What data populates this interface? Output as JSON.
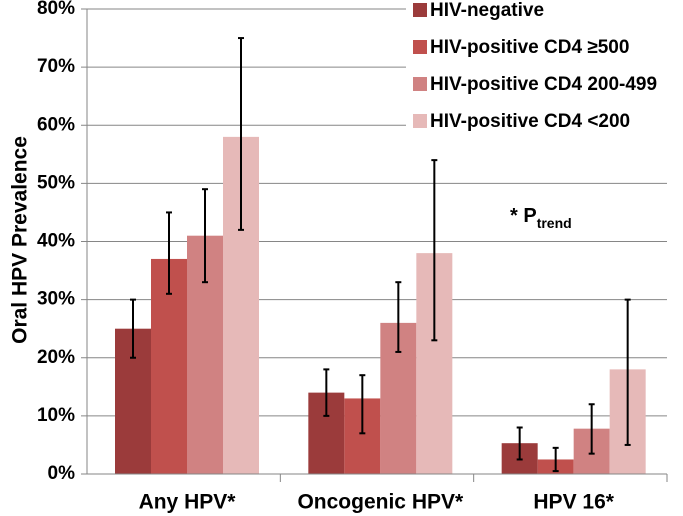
{
  "chart_data": {
    "type": "bar",
    "ylabel": "Oral HPV Prevalence",
    "xlabel": "",
    "ylim": [
      0,
      80
    ],
    "yticks": [
      "0%",
      "10%",
      "20%",
      "30%",
      "40%",
      "50%",
      "60%",
      "70%",
      "80%"
    ],
    "grid": true,
    "legend_position": "top-right",
    "categories": [
      "Any HPV*",
      "Oncogenic HPV*",
      "HPV 16*"
    ],
    "series": [
      {
        "name": "HIV-negative",
        "color": "#9b3b3b",
        "values": [
          25,
          14,
          5.3
        ],
        "err_low": [
          20,
          10,
          2.5
        ],
        "err_high": [
          30,
          18,
          8
        ]
      },
      {
        "name": "HIV-positive CD4 ≥500",
        "color": "#c0504d",
        "values": [
          37,
          13,
          2.5
        ],
        "err_low": [
          31,
          7,
          0.5
        ],
        "err_high": [
          45,
          17,
          4.5
        ]
      },
      {
        "name": "HIV-positive CD4 200-499",
        "color": "#d08282",
        "values": [
          41,
          26,
          7.8
        ],
        "err_low": [
          33,
          21,
          3.5
        ],
        "err_high": [
          49,
          33,
          12
        ]
      },
      {
        "name": "HIV-positive CD4 <200",
        "color": "#e6b9b8",
        "values": [
          58,
          38,
          18
        ],
        "err_low": [
          42,
          23,
          5
        ],
        "err_high": [
          75,
          54,
          30
        ]
      }
    ],
    "annotation": {
      "text": "* P",
      "subscript": "trend"
    }
  }
}
